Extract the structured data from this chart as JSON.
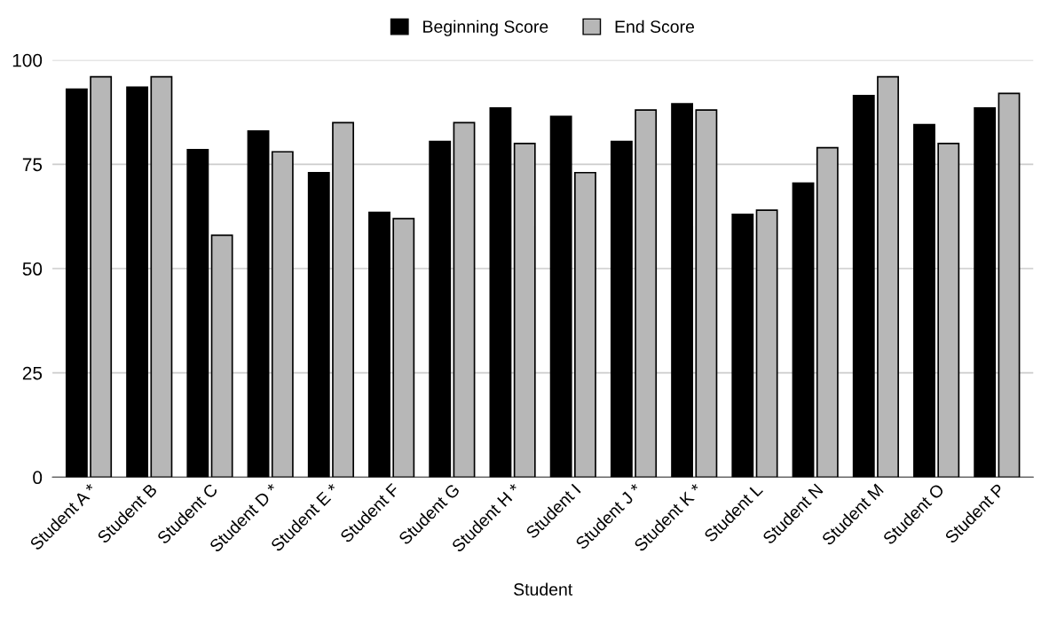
{
  "chart_data": {
    "type": "bar",
    "xlabel": "Student",
    "categories": [
      "Student A *",
      "Student B",
      "Student C",
      "Student D *",
      "Student E *",
      "Student F",
      "Student G",
      "Student H *",
      "Student I",
      "Student J *",
      "Student K *",
      "Student L",
      "Student N",
      "Student M",
      "Student O",
      "Student P"
    ],
    "series": [
      {
        "name": "Beginning Score",
        "color": "#000000",
        "values": [
          93,
          93.5,
          78.5,
          83,
          73,
          63.5,
          80.5,
          88.5,
          86.5,
          80.5,
          89.5,
          63,
          70.5,
          91.5,
          84.5,
          88.5
        ]
      },
      {
        "name": "End Score",
        "color": "#b7b7b7",
        "values": [
          96,
          96,
          58,
          78,
          85,
          62,
          85,
          80,
          73,
          88,
          88,
          64,
          79,
          96,
          80,
          92
        ]
      }
    ],
    "ylim": [
      0,
      100
    ],
    "yticks": [
      0,
      25,
      50,
      75,
      100
    ],
    "grid": "y",
    "legend": "top"
  }
}
